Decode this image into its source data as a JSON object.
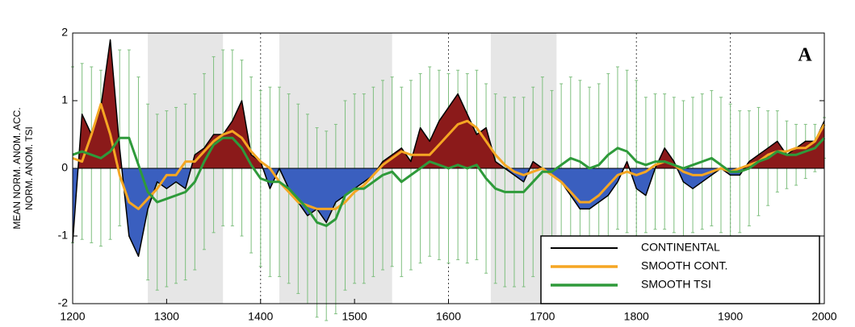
{
  "chart_data": {
    "type": "line",
    "ylabel": [
      "MEAN NORM. ANOM. ACC.",
      "NORM. ANOM. TSI"
    ],
    "annotation": "A",
    "x": [
      1200,
      1210,
      1220,
      1230,
      1240,
      1250,
      1260,
      1270,
      1280,
      1290,
      1300,
      1310,
      1320,
      1330,
      1340,
      1350,
      1360,
      1370,
      1380,
      1390,
      1400,
      1410,
      1420,
      1430,
      1440,
      1450,
      1460,
      1470,
      1480,
      1490,
      1500,
      1510,
      1520,
      1530,
      1540,
      1550,
      1560,
      1570,
      1580,
      1590,
      1600,
      1610,
      1620,
      1630,
      1640,
      1650,
      1660,
      1670,
      1680,
      1690,
      1700,
      1710,
      1720,
      1730,
      1740,
      1750,
      1760,
      1770,
      1780,
      1790,
      1800,
      1810,
      1820,
      1830,
      1840,
      1850,
      1860,
      1870,
      1880,
      1890,
      1900,
      1910,
      1920,
      1930,
      1940,
      1950,
      1960,
      1970,
      1980,
      1990,
      2000
    ],
    "series": [
      {
        "name": "CONTINENTAL",
        "color": "#000000",
        "fill_positive": "#8b1a1a",
        "fill_negative": "#3a5fbf",
        "values": [
          -1.1,
          0.8,
          0.5,
          0.9,
          1.9,
          0.3,
          -1.0,
          -1.3,
          -0.6,
          -0.2,
          -0.3,
          -0.2,
          -0.3,
          0.2,
          0.3,
          0.5,
          0.5,
          0.7,
          1.0,
          0.2,
          0.1,
          -0.3,
          0.0,
          -0.3,
          -0.5,
          -0.7,
          -0.6,
          -0.8,
          -0.5,
          -0.4,
          -0.3,
          -0.2,
          -0.1,
          0.1,
          0.2,
          0.3,
          0.1,
          0.6,
          0.4,
          0.7,
          0.9,
          1.1,
          0.8,
          0.5,
          0.6,
          0.1,
          0.0,
          -0.1,
          -0.2,
          0.1,
          0.0,
          -0.1,
          -0.2,
          -0.4,
          -0.6,
          -0.6,
          -0.5,
          -0.4,
          -0.2,
          0.1,
          -0.3,
          -0.4,
          0.0,
          0.3,
          0.1,
          -0.2,
          -0.3,
          -0.2,
          -0.1,
          0.0,
          -0.1,
          -0.1,
          0.1,
          0.2,
          0.3,
          0.4,
          0.2,
          0.3,
          0.4,
          0.4,
          0.7
        ]
      },
      {
        "name": "SMOOTH CONT.",
        "color": "#f5a623",
        "values": [
          0.15,
          0.1,
          0.5,
          0.95,
          0.5,
          -0.1,
          -0.5,
          -0.6,
          -0.45,
          -0.3,
          -0.1,
          -0.1,
          0.1,
          0.1,
          0.25,
          0.4,
          0.5,
          0.55,
          0.45,
          0.25,
          0.1,
          0.0,
          -0.2,
          -0.35,
          -0.5,
          -0.55,
          -0.6,
          -0.6,
          -0.6,
          -0.5,
          -0.35,
          -0.25,
          -0.1,
          0.05,
          0.15,
          0.25,
          0.2,
          0.2,
          0.2,
          0.35,
          0.5,
          0.65,
          0.7,
          0.6,
          0.4,
          0.2,
          0.05,
          -0.05,
          -0.1,
          -0.05,
          0.0,
          -0.1,
          -0.2,
          -0.35,
          -0.5,
          -0.5,
          -0.4,
          -0.25,
          -0.1,
          -0.05,
          -0.1,
          -0.05,
          0.05,
          0.1,
          0.05,
          -0.05,
          -0.1,
          -0.1,
          -0.05,
          0.0,
          -0.05,
          0.0,
          0.05,
          0.1,
          0.2,
          0.25,
          0.25,
          0.3,
          0.3,
          0.4,
          0.65
        ]
      },
      {
        "name": "SMOOTH TSI",
        "color": "#2e9a3a",
        "values": [
          0.2,
          0.25,
          0.2,
          0.15,
          0.25,
          0.45,
          0.45,
          0.05,
          -0.35,
          -0.5,
          -0.45,
          -0.4,
          -0.35,
          -0.2,
          0.1,
          0.35,
          0.45,
          0.45,
          0.3,
          0.05,
          -0.15,
          -0.2,
          -0.2,
          -0.3,
          -0.45,
          -0.6,
          -0.8,
          -0.85,
          -0.75,
          -0.4,
          -0.3,
          -0.3,
          -0.2,
          -0.1,
          -0.05,
          -0.2,
          -0.1,
          0.0,
          0.1,
          0.05,
          0.0,
          0.05,
          0.0,
          0.05,
          -0.15,
          -0.3,
          -0.35,
          -0.35,
          -0.35,
          -0.2,
          -0.05,
          -0.05,
          0.05,
          0.15,
          0.1,
          0.0,
          0.05,
          0.2,
          0.3,
          0.25,
          0.1,
          0.05,
          0.1,
          0.1,
          0.05,
          0.0,
          0.05,
          0.1,
          0.15,
          0.05,
          -0.05,
          -0.05,
          0.0,
          0.1,
          0.15,
          0.25,
          0.2,
          0.2,
          0.25,
          0.3,
          0.45
        ],
        "errors": [
          1.3,
          1.3,
          1.3,
          1.3,
          1.3,
          1.3,
          1.3,
          1.3,
          1.3,
          1.3,
          1.3,
          1.3,
          1.3,
          1.3,
          1.3,
          1.3,
          1.3,
          1.3,
          1.3,
          1.3,
          1.3,
          1.4,
          1.4,
          1.4,
          1.4,
          1.4,
          1.4,
          1.4,
          1.4,
          1.4,
          1.4,
          1.4,
          1.4,
          1.4,
          1.4,
          1.4,
          1.4,
          1.4,
          1.4,
          1.4,
          1.4,
          1.4,
          1.4,
          1.4,
          1.4,
          1.4,
          1.4,
          1.4,
          1.4,
          1.4,
          1.4,
          1.2,
          1.2,
          1.2,
          1.2,
          1.2,
          1.2,
          1.2,
          1.2,
          1.2,
          1.2,
          1.0,
          1.0,
          1.0,
          1.0,
          1.0,
          1.0,
          1.0,
          1.0,
          1.0,
          1.0,
          0.9,
          0.85,
          0.8,
          0.7,
          0.6,
          0.5,
          0.45,
          0.4,
          0.35,
          0.3
        ]
      }
    ],
    "shaded_spans": [
      [
        1280,
        1360
      ],
      [
        1420,
        1540
      ],
      [
        1645,
        1715
      ]
    ],
    "vlines": [
      1400,
      1600,
      1800,
      1900
    ],
    "xlim": [
      1200,
      2000
    ],
    "xticks": [
      1200,
      1300,
      1400,
      1500,
      1600,
      1700,
      1800,
      1900,
      2000
    ],
    "ylim": [
      -2,
      2
    ],
    "yticks": [
      -2,
      -1,
      0,
      1,
      2
    ],
    "legend": "lower right"
  }
}
